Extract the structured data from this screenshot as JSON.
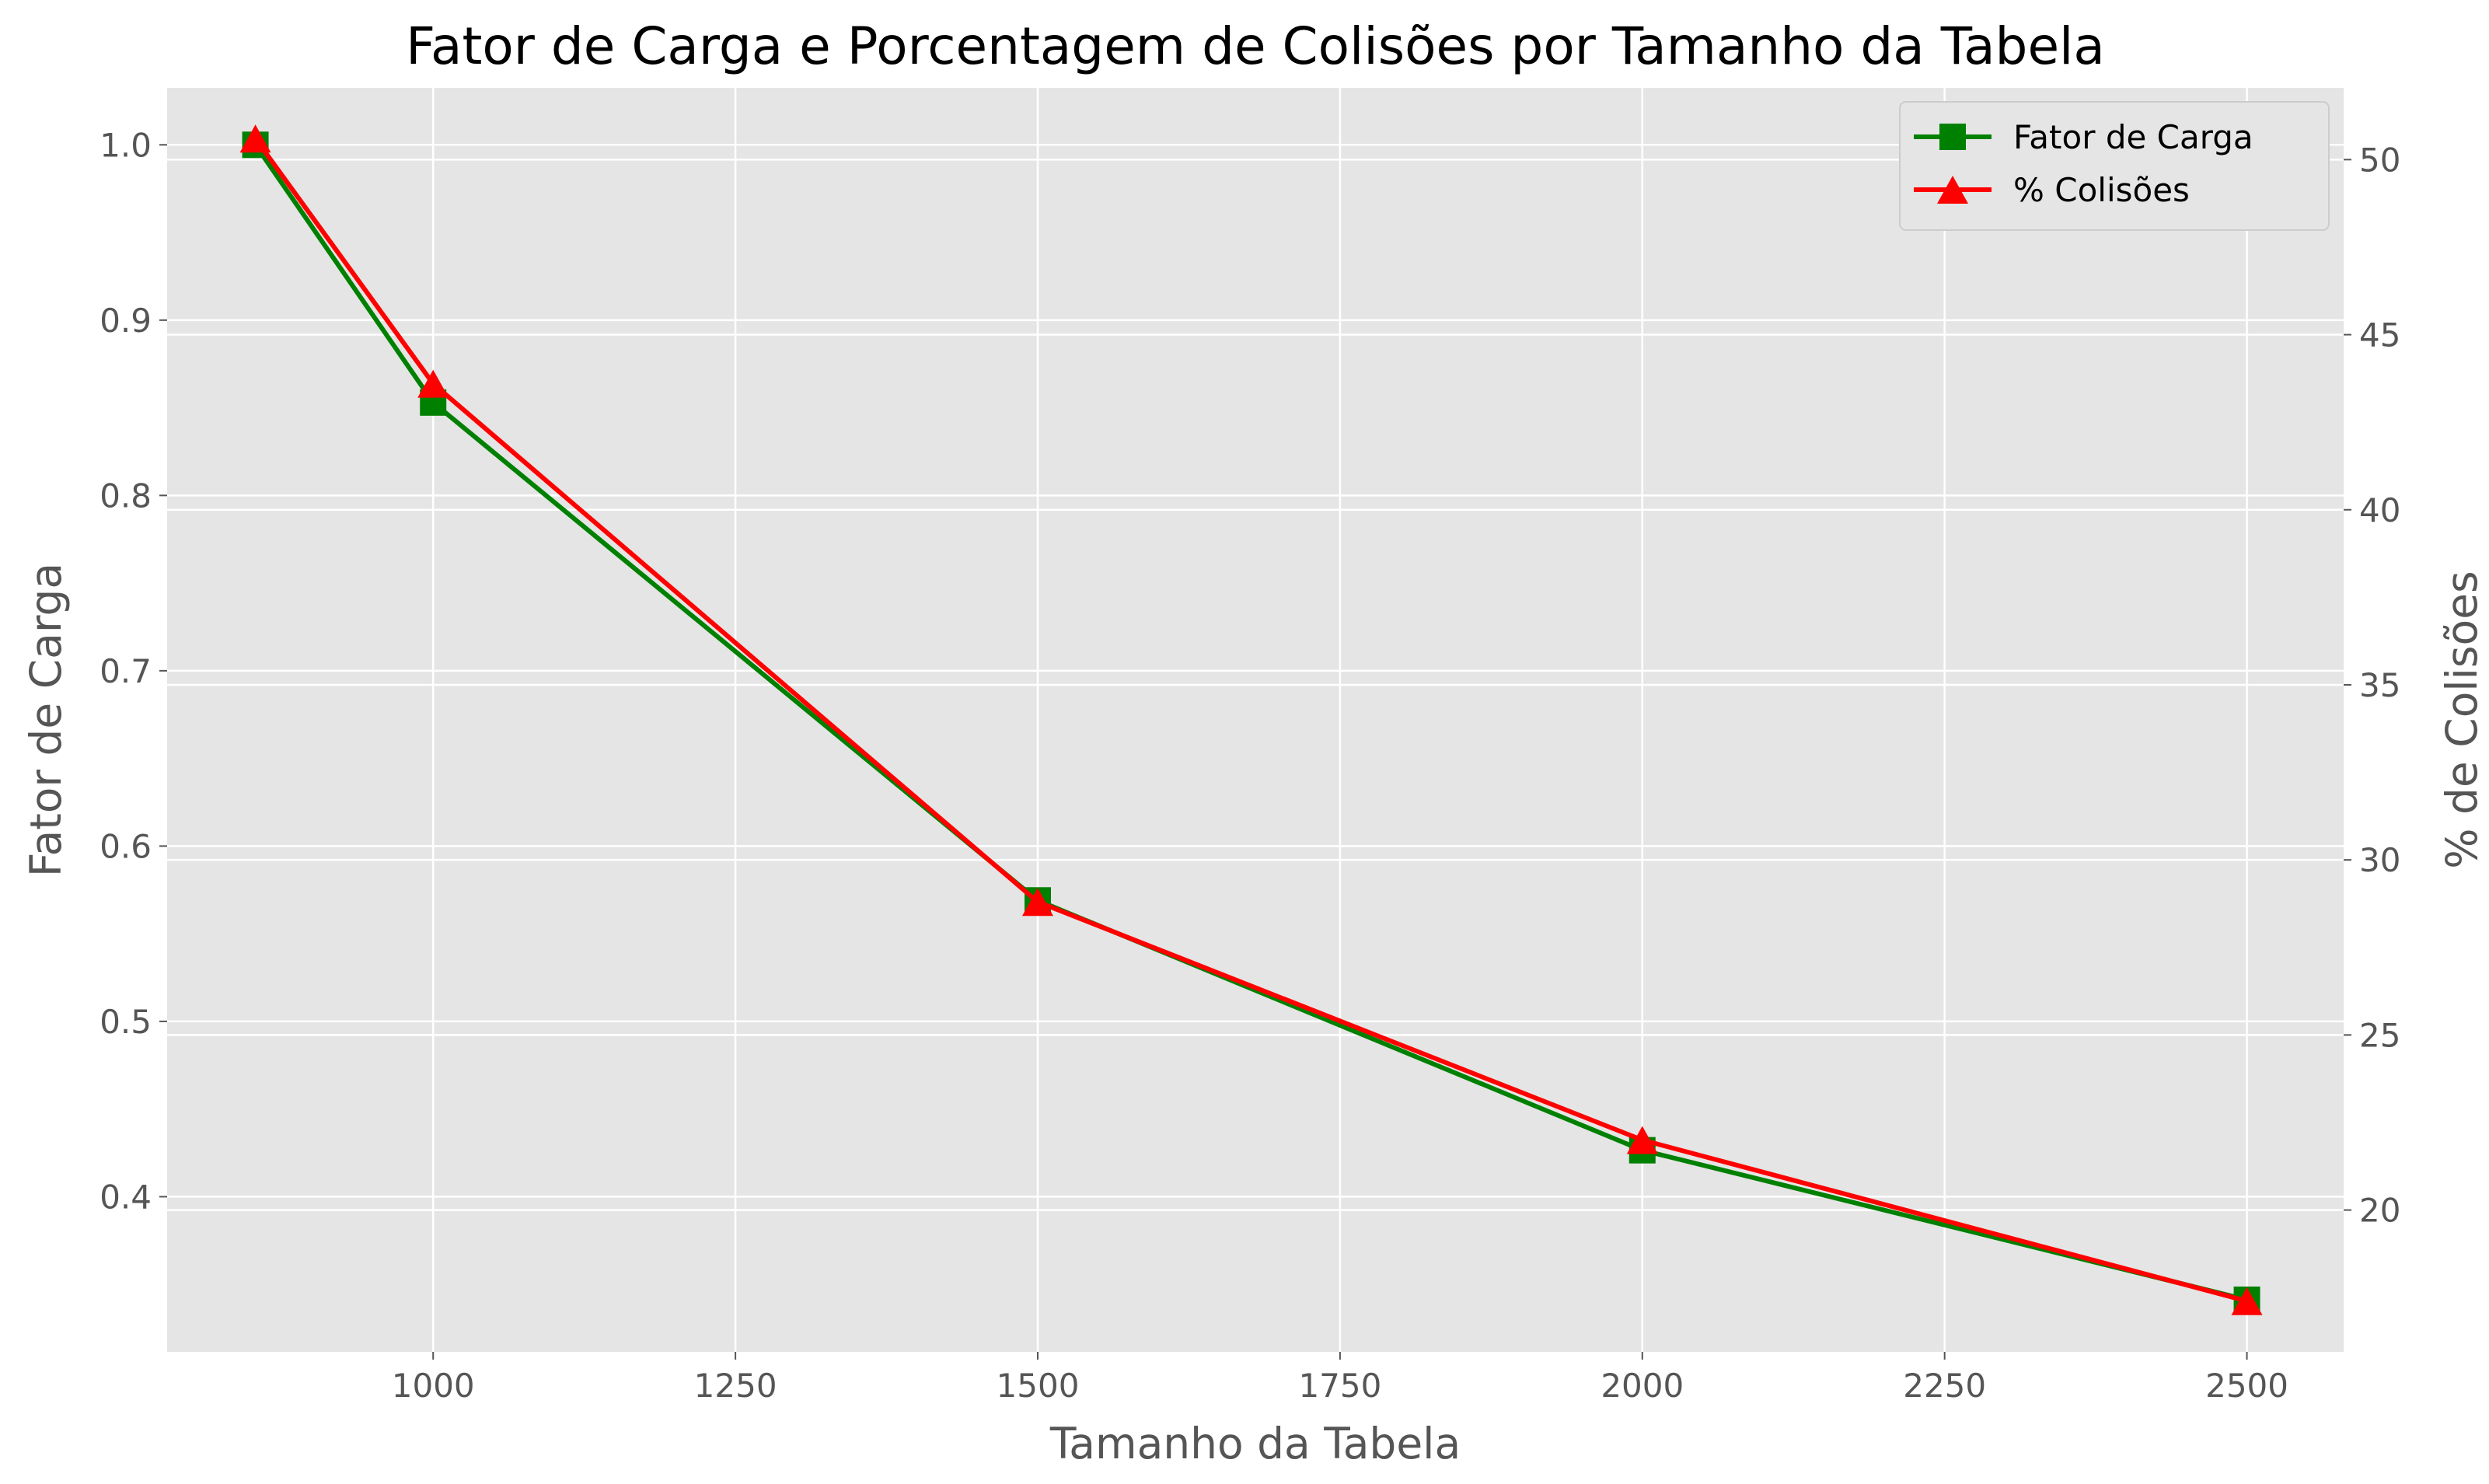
{
  "chart_data": {
    "type": "line",
    "title": "Fator de Carga e Porcentagem de Colisões por Tamanho da Tabela",
    "xlabel": "Tamanho da Tabela",
    "ylabel": "Fator de Carga",
    "y2label": "% de Colisões",
    "x": [
      853,
      1000,
      1500,
      2000,
      2500
    ],
    "xlim": [
      780,
      2580
    ],
    "ylim": [
      0.3115,
      1.0325
    ],
    "y2lim": [
      15.95,
      52.05
    ],
    "xticks": [
      "1000",
      "1250",
      "1500",
      "1750",
      "2000",
      "2250",
      "2500"
    ],
    "yticks": [
      "0.4",
      "0.5",
      "0.6",
      "0.7",
      "0.8",
      "0.9",
      "1.0"
    ],
    "y2ticks": [
      "20",
      "25",
      "30",
      "35",
      "40",
      "45",
      "50"
    ],
    "grid": true,
    "legend_position": "top-right",
    "series": [
      {
        "name": "Fator de Carga",
        "axis": "left",
        "color": "#008000",
        "marker": "square",
        "values": [
          1.0,
          0.853,
          0.569,
          0.4265,
          0.3412
        ]
      },
      {
        "name": "% Colisões",
        "axis": "right",
        "color": "#ff0000",
        "marker": "triangle",
        "values": [
          50.6,
          43.6,
          28.8,
          22.0,
          17.4
        ]
      }
    ]
  },
  "colors": {
    "plot_background": "#e5e5e5",
    "grid": "#ffffff",
    "tick_text": "#555555"
  }
}
